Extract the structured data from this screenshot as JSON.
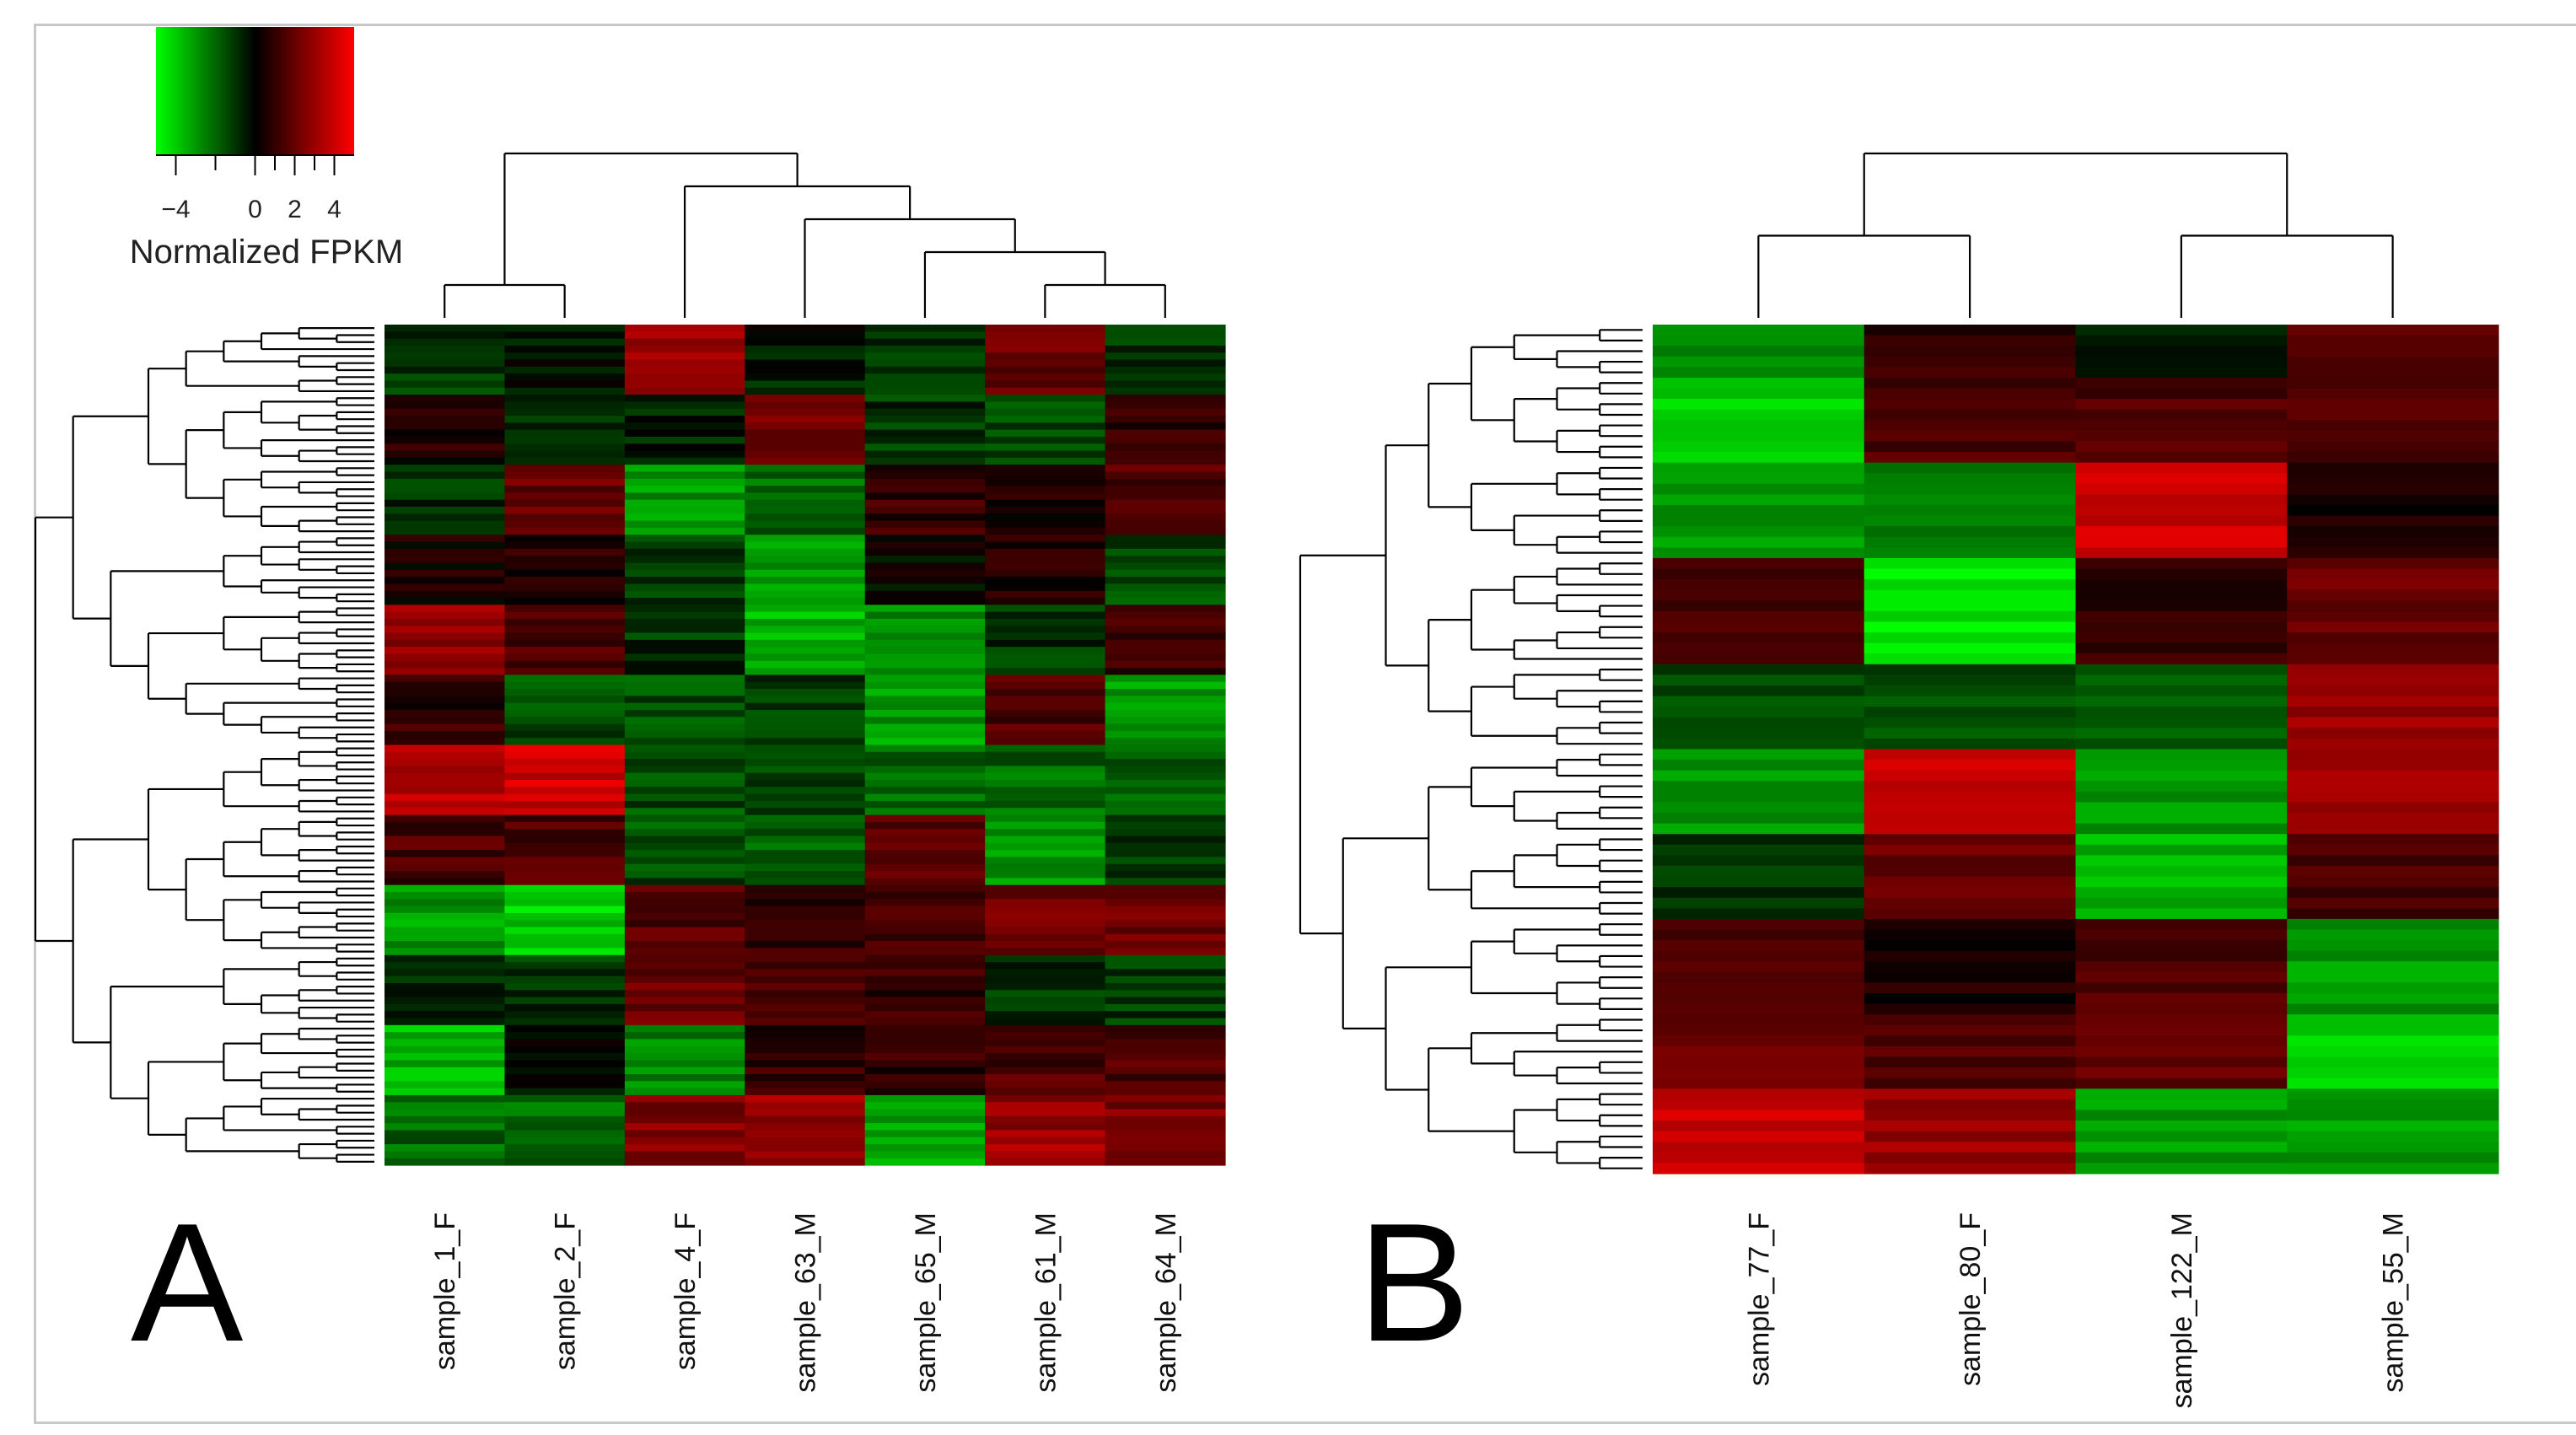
{
  "legend": {
    "title": "Normalized FPKM",
    "ticks": [
      "−4",
      "0",
      "2",
      "4"
    ],
    "tick_values": [
      -4,
      0,
      2,
      4
    ],
    "range": [
      -5,
      5
    ],
    "colors": {
      "low": "#00ff00",
      "mid": "#000000",
      "high": "#ff0000"
    }
  },
  "chart_data": [
    {
      "type": "heatmap",
      "panel_label": "A",
      "title": "",
      "columns": [
        "sample_1_F",
        "sample_2_F",
        "sample_4_F",
        "sample_63_M",
        "sample_65_M",
        "sample_61_M",
        "sample_64_M"
      ],
      "column_tree": "((sample_1_F,sample_2_F),(sample_4_F,(sample_63_M,(sample_65_M,(sample_61_M,sample_64_M)))))",
      "row_count": 120,
      "value_range": [
        -5,
        5
      ],
      "row_blocks": [
        {
          "rows": 10,
          "values": [
            -1,
            -0.5,
            3,
            -0.5,
            -1,
            2,
            -1
          ]
        },
        {
          "rows": 10,
          "values": [
            0.5,
            -1,
            -0.5,
            2,
            -1,
            -1.5,
            1
          ]
        },
        {
          "rows": 10,
          "values": [
            -1,
            2,
            -3,
            -2,
            1,
            0.5,
            1.5
          ]
        },
        {
          "rows": 10,
          "values": [
            0.5,
            0.5,
            -1,
            -3,
            0,
            0.5,
            -1.5
          ]
        },
        {
          "rows": 10,
          "values": [
            3,
            1.5,
            -1,
            -3.5,
            -3,
            -1,
            1
          ]
        },
        {
          "rows": 10,
          "values": [
            1,
            -1.5,
            -1.5,
            -1,
            -3,
            1.5,
            -3
          ]
        },
        {
          "rows": 10,
          "values": [
            3.5,
            4,
            -1.5,
            -1.5,
            -2,
            -2,
            -2
          ]
        },
        {
          "rows": 10,
          "values": [
            1.5,
            1.5,
            -1.5,
            -2,
            2,
            -3,
            -1
          ]
        },
        {
          "rows": 10,
          "values": [
            -3,
            -4,
            1.5,
            1,
            1,
            2,
            2
          ]
        },
        {
          "rows": 10,
          "values": [
            -1,
            -1,
            2,
            1.5,
            1,
            -1,
            -1
          ]
        },
        {
          "rows": 10,
          "values": [
            -3.5,
            0,
            -2.5,
            1,
            1,
            1.5,
            1.5
          ]
        },
        {
          "rows": 10,
          "values": [
            -2,
            -2,
            2.5,
            3,
            -3,
            3,
            2.5
          ]
        }
      ]
    },
    {
      "type": "heatmap",
      "panel_label": "B",
      "title": "",
      "columns": [
        "sample_77_F",
        "sample_80_F",
        "sample_122_M",
        "sample_55_M"
      ],
      "column_tree": "((sample_77_F,sample_80_F),(sample_122_M,sample_55_M))",
      "row_count": 80,
      "value_range": [
        -5,
        5
      ],
      "row_blocks": [
        {
          "rows": 5,
          "values": [
            -2.5,
            1,
            -0.5,
            1.5
          ]
        },
        {
          "rows": 8,
          "values": [
            -4,
            1.5,
            1.5,
            1.5
          ]
        },
        {
          "rows": 9,
          "values": [
            -3,
            -2.5,
            4,
            0.5
          ]
        },
        {
          "rows": 10,
          "values": [
            1.5,
            -4.5,
            1,
            2
          ]
        },
        {
          "rows": 8,
          "values": [
            -1.5,
            -1.5,
            -2,
            3
          ]
        },
        {
          "rows": 8,
          "values": [
            -3,
            4,
            -3,
            3
          ]
        },
        {
          "rows": 8,
          "values": [
            -1,
            2,
            -3.5,
            1.5
          ]
        },
        {
          "rows": 9,
          "values": [
            1.5,
            0.5,
            1.5,
            -3
          ]
        },
        {
          "rows": 7,
          "values": [
            2,
            1.5,
            2,
            -4
          ]
        },
        {
          "rows": 8,
          "values": [
            4,
            3,
            -3,
            -3
          ]
        }
      ]
    }
  ]
}
